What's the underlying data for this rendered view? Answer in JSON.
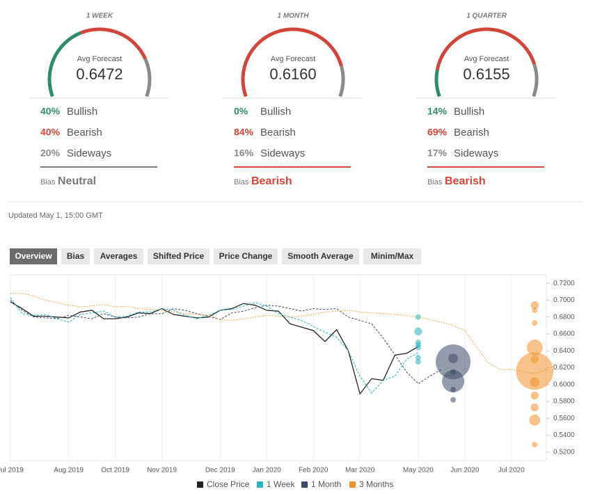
{
  "forecasts": [
    {
      "period": "1 WEEK",
      "label": "Avg Forecast",
      "value": "0.6472",
      "stats": [
        {
          "pct": {
            "value": 40,
            "label": "40%"
          },
          "name": "Bullish",
          "color": "#2e8b6e"
        },
        {
          "pct": {
            "value": 40,
            "label": "40%"
          },
          "name": "Bearish",
          "color": "#d0463a"
        },
        {
          "pct": {
            "value": 20,
            "label": "20%"
          },
          "name": "Sideways",
          "color": "#8a8a8a"
        }
      ],
      "bias_label": "Bias",
      "bias": "Neutral",
      "bias_color": "#777777"
    },
    {
      "period": "1 MONTH",
      "label": "Avg Forecast",
      "value": "0.6160",
      "stats": [
        {
          "pct": {
            "value": 0,
            "label": "0%"
          },
          "name": "Bullish",
          "color": "#2e8b6e"
        },
        {
          "pct": {
            "value": 84,
            "label": "84%"
          },
          "name": "Bearish",
          "color": "#d0463a"
        },
        {
          "pct": {
            "value": 16,
            "label": "16%"
          },
          "name": "Sideways",
          "color": "#8a8a8a"
        }
      ],
      "bias_label": "Bias",
      "bias": "Bearish",
      "bias_color": "#d0463a"
    },
    {
      "period": "1 QUARTER",
      "label": "Avg Forecast",
      "value": "0.6155",
      "stats": [
        {
          "pct": {
            "value": 14,
            "label": "14%"
          },
          "name": "Bullish",
          "color": "#2e8b6e"
        },
        {
          "pct": {
            "value": 69,
            "label": "69%"
          },
          "name": "Bearish",
          "color": "#d0463a"
        },
        {
          "pct": {
            "value": 17,
            "label": "17%"
          },
          "name": "Sideways",
          "color": "#8a8a8a"
        }
      ],
      "bias_label": "Bias",
      "bias": "Bearish",
      "bias_color": "#d0463a"
    }
  ],
  "updated": "Updated May 1, 15:00 GMT",
  "tabs": [
    "Overview",
    "Bias",
    "Averages",
    "Shifted Price",
    "Price Change",
    "Smooth Average",
    "Minim/Max"
  ],
  "active_tab": 0,
  "chart_data": {
    "type": "line",
    "categories": [
      "Jul 2019",
      null,
      null,
      null,
      null,
      "Aug 2019",
      null,
      null,
      null,
      "Oct 2019",
      null,
      null,
      null,
      "Nov 2019",
      null,
      null,
      null,
      null,
      "Dec 2019",
      null,
      null,
      null,
      "Jan 2020",
      null,
      null,
      null,
      "Feb 2020",
      null,
      null,
      null,
      "Mar 2020",
      null,
      null,
      null,
      null,
      "May 2020",
      null,
      null,
      null,
      "Jun 2020",
      null,
      null,
      null,
      "Jul 2020",
      null,
      null,
      null
    ],
    "ylim": [
      0.51,
      0.73
    ],
    "yticks": [
      {
        "value": 0.52,
        "label": "0.5200"
      },
      {
        "value": 0.54,
        "label": "0.5400"
      },
      {
        "value": 0.56,
        "label": "0.5600"
      },
      {
        "value": 0.58,
        "label": "0.5800"
      },
      {
        "value": 0.6,
        "label": "0.6000"
      },
      {
        "value": 0.62,
        "label": "0.6200"
      },
      {
        "value": 0.64,
        "label": "0.6400"
      },
      {
        "value": 0.66,
        "label": "0.6600"
      },
      {
        "value": 0.68,
        "label": "0.6800"
      },
      {
        "value": 0.7,
        "label": "0.7000"
      },
      {
        "value": 0.72,
        "label": "0.7200"
      }
    ],
    "grid": true,
    "series": [
      {
        "name": "Close Price",
        "color": "#222222",
        "style": "solid",
        "values": [
          0.698,
          0.69,
          0.681,
          0.681,
          0.68,
          0.679,
          0.686,
          0.688,
          0.678,
          0.678,
          0.68,
          0.685,
          0.684,
          0.69,
          0.683,
          0.681,
          0.679,
          0.68,
          0.688,
          0.69,
          0.696,
          0.694,
          0.688,
          0.687,
          0.672,
          0.668,
          0.664,
          0.651,
          0.665,
          0.64,
          0.589,
          0.607,
          0.605,
          0.635,
          0.637,
          0.645,
          null,
          null,
          null,
          null,
          null,
          null,
          null,
          null,
          null,
          null,
          null
        ]
      },
      {
        "name": "1 Week",
        "color": "#2ab3c0",
        "style": "dashed",
        "values": [
          0.703,
          0.684,
          0.682,
          0.683,
          0.678,
          0.674,
          0.683,
          0.685,
          0.687,
          0.68,
          0.681,
          0.686,
          0.686,
          0.69,
          0.688,
          0.682,
          0.678,
          0.682,
          0.688,
          0.689,
          0.693,
          0.697,
          0.693,
          0.684,
          0.68,
          0.676,
          0.669,
          0.662,
          0.656,
          0.64,
          0.61,
          0.59,
          0.605,
          0.61,
          0.63,
          0.638,
          null,
          null,
          null,
          null,
          null,
          null,
          null,
          null,
          null,
          null,
          null
        ],
        "forecast_x": 35,
        "forecast_values": [
          0.68,
          0.663,
          0.65,
          0.647,
          0.644,
          0.632,
          0.627
        ],
        "forecast_sizes": [
          1,
          2,
          1,
          1,
          1,
          1,
          1
        ]
      },
      {
        "name": "1 Month",
        "color": "#3c4a66",
        "style": "dashed",
        "values": [
          0.7,
          0.688,
          0.68,
          0.679,
          0.678,
          0.682,
          0.68,
          0.678,
          0.684,
          0.68,
          0.679,
          0.68,
          0.684,
          0.684,
          0.69,
          0.688,
          0.684,
          0.681,
          0.677,
          0.685,
          0.687,
          0.691,
          0.694,
          0.693,
          0.69,
          0.687,
          0.69,
          0.689,
          0.69,
          0.68,
          0.676,
          0.672,
          0.655,
          0.635,
          0.615,
          0.601,
          0.61,
          0.618,
          null,
          null,
          null,
          null,
          null,
          null,
          null,
          null,
          null
        ],
        "forecast_x": 38,
        "forecast_values": [
          0.627,
          0.604,
          0.631,
          0.615,
          0.594,
          0.582
        ],
        "forecast_sizes": [
          39,
          16,
          3,
          1,
          1,
          1
        ]
      },
      {
        "name": "3 Months",
        "color": "#f0922b",
        "style": "dotted",
        "values": [
          0.708,
          0.708,
          0.705,
          0.7,
          0.697,
          0.694,
          0.692,
          0.693,
          0.695,
          0.692,
          0.693,
          0.69,
          0.689,
          0.688,
          0.686,
          0.684,
          0.683,
          0.682,
          0.677,
          0.676,
          0.678,
          0.68,
          0.682,
          0.681,
          0.68,
          0.681,
          0.683,
          0.686,
          0.687,
          0.688,
          0.686,
          0.685,
          0.684,
          0.683,
          0.682,
          0.68,
          0.677,
          0.674,
          0.67,
          0.664,
          0.645,
          0.626,
          0.618,
          0.618,
          0.615,
          0.613,
          0.618
        ],
        "forecast_x": 45,
        "forecast_values": [
          0.694,
          0.688,
          0.673,
          0.644,
          0.63,
          0.616,
          0.603,
          0.587,
          0.573,
          0.558,
          0.529
        ],
        "forecast_sizes": [
          2,
          1,
          1,
          8,
          2,
          45,
          3,
          2,
          2,
          4,
          1
        ]
      }
    ]
  }
}
